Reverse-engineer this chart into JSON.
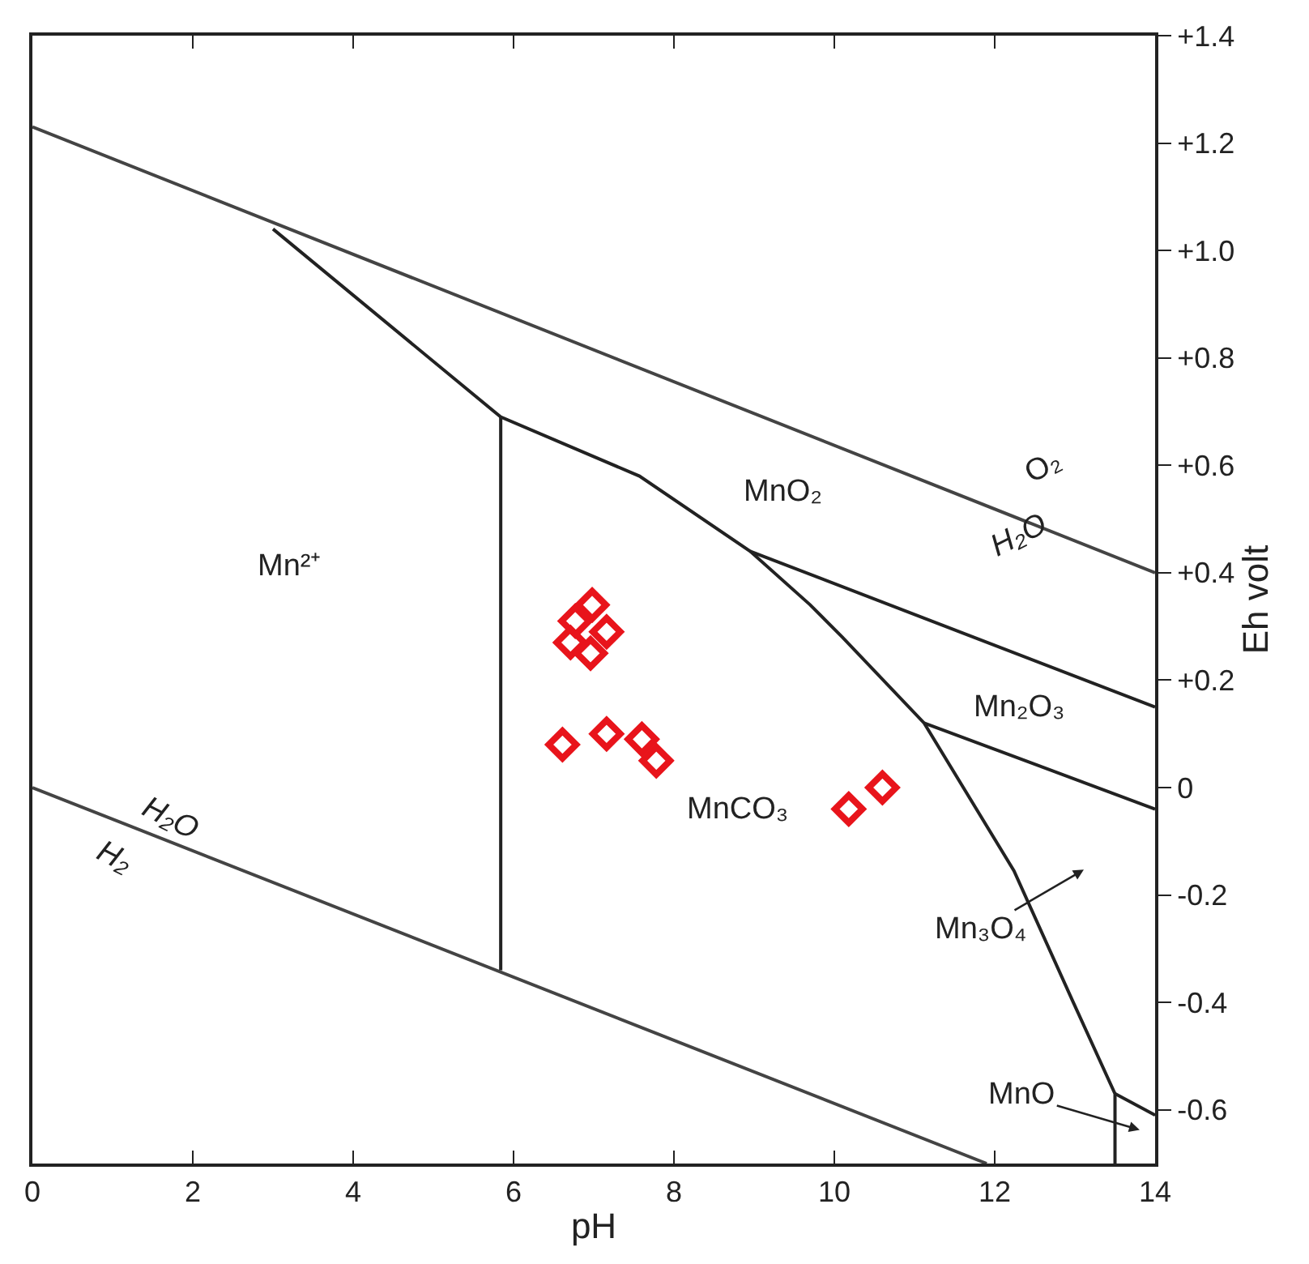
{
  "chart_data": {
    "type": "line",
    "xlabel": "pH",
    "ylabel": "Eh volt",
    "xlim": [
      0,
      14
    ],
    "ylim": [
      -0.7,
      1.4
    ],
    "xticks": [
      0,
      2,
      4,
      6,
      8,
      10,
      12,
      14
    ],
    "yticks": [
      {
        "value": 1.4,
        "label": "+1.4"
      },
      {
        "value": 1.2,
        "label": "+1.2"
      },
      {
        "value": 1.0,
        "label": "+1.0"
      },
      {
        "value": 0.8,
        "label": "+0.8"
      },
      {
        "value": 0.6,
        "label": "+0.6"
      },
      {
        "value": 0.4,
        "label": "+0.4"
      },
      {
        "value": 0.2,
        "label": "+0.2"
      },
      0,
      {
        "value": -0.2,
        "label": "-0.2"
      },
      {
        "value": -0.4,
        "label": "-0.4"
      },
      {
        "value": -0.6,
        "label": "-0.6"
      }
    ],
    "grid": false,
    "series": [
      {
        "color": "#444444",
        "x": [
          0,
          14
        ],
        "values": [
          1.23,
          0.4
        ]
      },
      {
        "color": "#444444",
        "x": [
          0,
          11.9
        ],
        "values": [
          0,
          -0.7
        ]
      },
      {
        "color": "#222222",
        "x": [
          3.0,
          5.84,
          7.57,
          8.95,
          9.7,
          10.1,
          11.12,
          12.24,
          12.98,
          13.5,
          13.5
        ],
        "values": [
          1.04,
          0.69,
          0.58,
          0.44,
          0.34,
          0.28,
          0.12,
          -0.155,
          -0.4,
          -0.57,
          -0.7
        ]
      },
      {
        "color": "#222222",
        "x": [
          5.84,
          5.84
        ],
        "values": [
          0.69,
          -0.34
        ]
      },
      {
        "color": "#222222",
        "x": [
          8.95,
          14
        ],
        "values": [
          0.44,
          0.15
        ]
      },
      {
        "color": "#222222",
        "x": [
          11.12,
          14
        ],
        "values": [
          0.12,
          -0.04
        ]
      },
      {
        "color": "#222222",
        "x": [
          13.5,
          14
        ],
        "values": [
          -0.57,
          -0.61
        ]
      },
      {
        "type": "scatter",
        "marker": "diamond",
        "color": "#e8141b",
        "x": [
          6.98,
          6.77,
          7.16,
          6.71,
          6.96,
          6.61,
          7.16,
          7.6,
          7.78,
          10.18,
          10.6
        ],
        "values": [
          0.34,
          0.31,
          0.29,
          0.27,
          0.25,
          0.08,
          0.1,
          0.09,
          0.05,
          -0.04,
          0.0
        ]
      }
    ],
    "annotations": [
      "Mn²⁺",
      "MnO₂",
      "O₂",
      "H₂O",
      "H₂O",
      "H₂",
      "MnCO₃",
      "Mn₂O₃",
      "Mn₃O₄",
      "MnO"
    ]
  }
}
